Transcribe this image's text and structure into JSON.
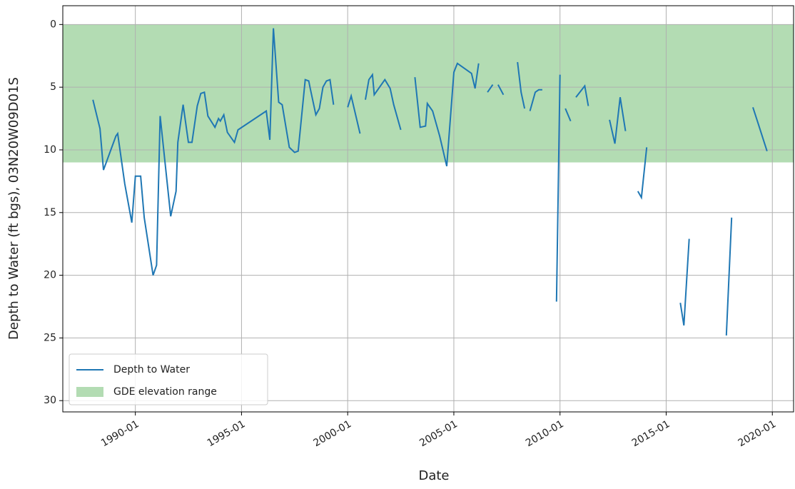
{
  "chart_data": {
    "type": "line",
    "xlabel": "Date",
    "ylabel": "Depth to Water (ft bgs), 03N20W09D01S",
    "xlim": [
      "1986-08",
      "2021-01"
    ],
    "xticks": [
      "1990-01",
      "1995-01",
      "2000-01",
      "2005-01",
      "2010-01",
      "2015-01",
      "2020-01"
    ],
    "ylim": [
      -1.5,
      30.9
    ],
    "y_inverted": true,
    "yticks": [
      0,
      5,
      10,
      15,
      20,
      25,
      30
    ],
    "grid": true,
    "legend": "lower left",
    "x": [
      "1988-01",
      "1988-05",
      "1988-07",
      "1989-02",
      "1989-03",
      "1989-07",
      "1989-11",
      "1990-01",
      "1990-04",
      "1990-06",
      "1990-11",
      "1991-01",
      "1991-03",
      "1991-09",
      "1991-12",
      "1992-01",
      "1992-04",
      "1992-07",
      "1992-09",
      "1992-12",
      "1993-02",
      "1993-04",
      "1993-06",
      "1993-10",
      "1993-12",
      "1994-01",
      "1994-03",
      "1994-05",
      "1994-09",
      "1994-11",
      "1996-03",
      "1996-05",
      "1996-07",
      "1996-10",
      "1996-12",
      "1997-04",
      "1997-07",
      "1997-09",
      "1998-01",
      "1998-03",
      "1998-04",
      "1998-07",
      "1998-09",
      "1998-11",
      "1999-01",
      "1999-03",
      "1999-05",
      null,
      "2000-01",
      "2000-03",
      "2000-08",
      null,
      "2000-11",
      "2001-01",
      "2001-03",
      "2001-04",
      "2001-10",
      "2002-01",
      "2002-03",
      "2002-07",
      null,
      "2003-03",
      "2003-06",
      "2003-09",
      "2003-10",
      "2004-01",
      "2004-05",
      "2004-09",
      "2005-01",
      "2005-03",
      "2005-11",
      "2006-01",
      "2006-03",
      null,
      "2006-08",
      "2006-11",
      null,
      "2007-02",
      "2007-05",
      null,
      "2008-01",
      "2008-03",
      "2008-05",
      null,
      "2008-08",
      "2008-11",
      "2009-01",
      "2009-03",
      null,
      "2009-11",
      "2010-01",
      null,
      "2010-04",
      "2010-07",
      null,
      "2010-10",
      "2011-03",
      "2011-05",
      null,
      "2012-05",
      "2012-08",
      "2012-11",
      "2013-02",
      null,
      "2013-09",
      "2013-11",
      "2014-02",
      null,
      "2015-09",
      "2015-11",
      "2016-02",
      null,
      "2017-11",
      "2018-02",
      null,
      "2019-02",
      "2019-05",
      "2019-10"
    ],
    "series": [
      {
        "name": "Depth to Water",
        "color": "#1f77b4",
        "values": [
          6.0,
          8.3,
          11.6,
          8.9,
          8.7,
          12.7,
          15.8,
          12.1,
          12.1,
          15.4,
          20.0,
          19.2,
          7.3,
          15.3,
          13.3,
          9.4,
          6.4,
          9.4,
          9.4,
          6.5,
          5.5,
          5.4,
          7.3,
          8.2,
          7.5,
          7.7,
          7.2,
          8.6,
          9.4,
          8.4,
          6.9,
          9.2,
          0.3,
          6.2,
          6.4,
          9.8,
          10.2,
          10.1,
          4.4,
          4.5,
          5.2,
          7.2,
          6.7,
          5.0,
          4.5,
          4.4,
          6.4,
          null,
          6.6,
          5.7,
          8.7,
          null,
          6.0,
          4.4,
          4.0,
          5.6,
          4.4,
          5.1,
          6.4,
          8.4,
          null,
          4.2,
          8.2,
          8.1,
          6.3,
          6.9,
          8.9,
          11.3,
          3.8,
          3.1,
          3.9,
          5.1,
          3.1,
          null,
          5.4,
          4.8,
          null,
          4.8,
          5.6,
          null,
          3.0,
          5.4,
          6.7,
          null,
          6.9,
          5.4,
          5.2,
          5.2,
          null,
          22.1,
          4.0,
          null,
          6.7,
          7.7,
          null,
          5.8,
          4.9,
          6.5,
          null,
          7.6,
          9.5,
          5.8,
          8.5,
          null,
          13.3,
          13.8,
          9.8,
          null,
          22.2,
          24.0,
          17.1,
          null,
          24.8,
          15.4,
          null,
          6.6,
          7.9,
          10.1
        ]
      }
    ],
    "band": {
      "name": "GDE elevation range",
      "color": "#b3dcb3",
      "range": [
        0,
        11
      ]
    }
  }
}
